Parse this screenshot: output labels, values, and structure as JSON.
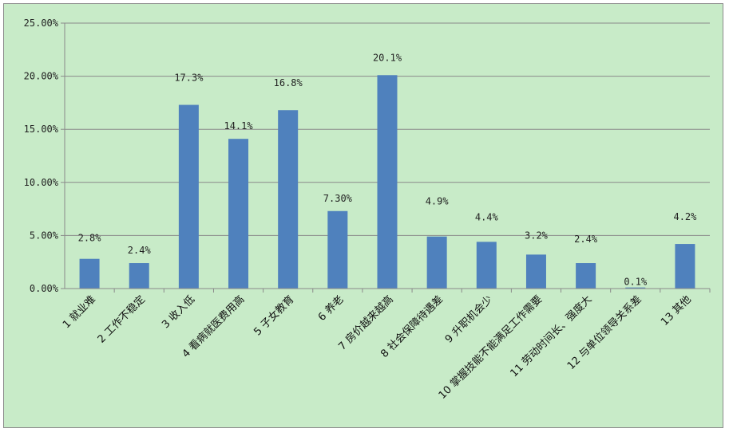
{
  "chart_data": {
    "type": "bar",
    "title": "",
    "xlabel": "",
    "ylabel": "",
    "ylim": [
      0,
      25
    ],
    "yticks": [
      "0.00%",
      "5.00%",
      "10.00%",
      "15.00%",
      "20.00%",
      "25.00%"
    ],
    "grid": true,
    "legend": "none",
    "bar_color": "#4f81bd",
    "background_color": "#c8ebc8",
    "categories": [
      "1 就业难",
      "2 工作不稳定",
      "3 收入低",
      "4 看病就医费用高",
      "5 子女教育",
      "6 养老",
      "7 房价越来越高",
      "8 社会保障待遇差",
      "9 升职机会少",
      "10 掌握技能不能满足工作需要",
      "11 劳动时间长、强度大",
      "12 与单位领导关系差",
      "13 其他"
    ],
    "values": [
      2.8,
      2.4,
      17.3,
      14.1,
      16.8,
      7.3,
      20.1,
      4.9,
      4.4,
      3.2,
      2.4,
      0.1,
      4.2
    ],
    "data_labels": [
      "2.8%",
      "2.4%",
      "17.3%",
      "14.1%",
      "16.8%",
      "7.30%",
      "20.1%",
      "4.9%",
      "4.4%",
      "3.2%",
      "2.4%",
      "0.1%",
      "4.2%"
    ]
  }
}
